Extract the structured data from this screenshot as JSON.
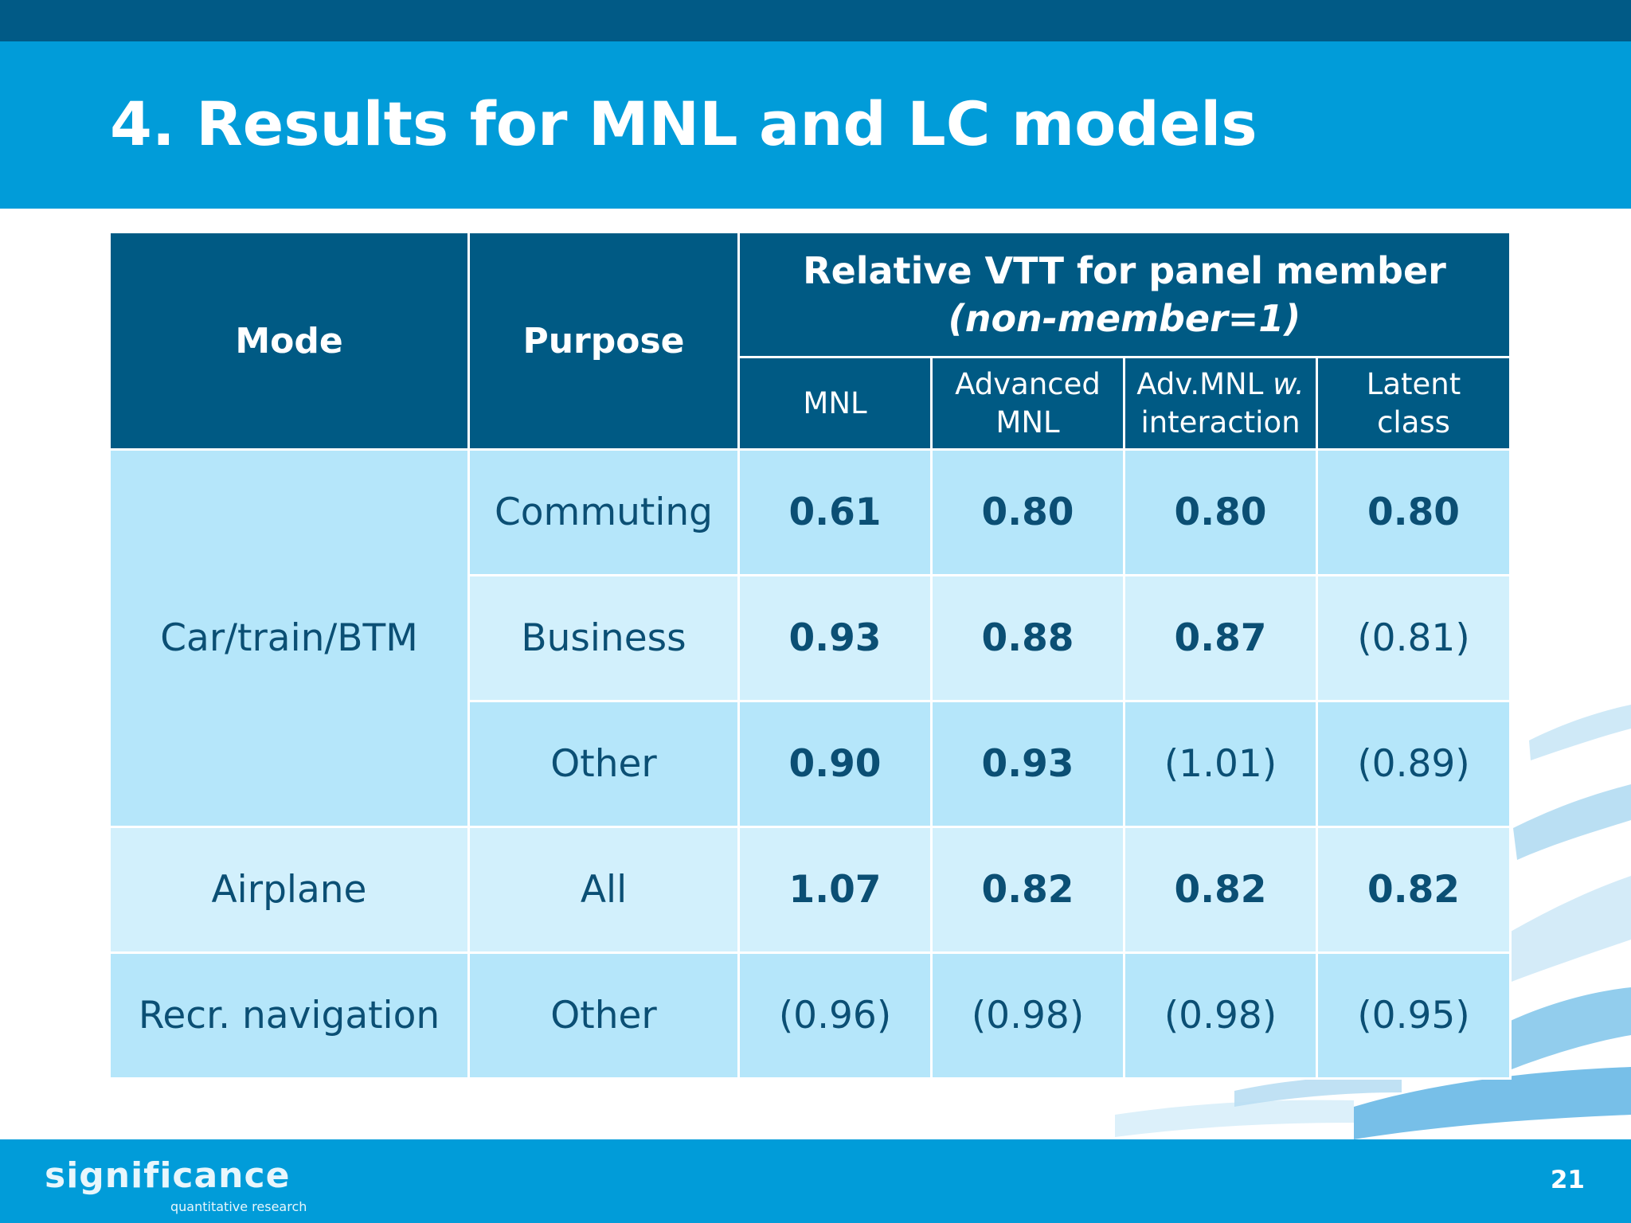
{
  "slide": {
    "title": "4. Results for MNL and LC models",
    "page_number": "21"
  },
  "logo": {
    "name": "significance",
    "tagline": "quantitative research"
  },
  "table": {
    "headers": {
      "mode": "Mode",
      "purpose": "Purpose",
      "group_title": "Relative VTT for panel member",
      "group_subtitle": "(non-member=1)",
      "columns": [
        {
          "line1": "MNL",
          "line2": ""
        },
        {
          "line1": "Advanced",
          "line2": "MNL"
        },
        {
          "line1_plain": "Adv.MNL ",
          "line1_italic": "w.",
          "line2": "interaction"
        },
        {
          "line1": "Latent",
          "line2": "class"
        }
      ]
    },
    "rows": [
      {
        "mode": "Car/train/BTM",
        "purpose": "Commuting",
        "values": [
          "0.61",
          "0.80",
          "0.80",
          "0.80"
        ]
      },
      {
        "mode": "",
        "purpose": "Business",
        "values": [
          "0.93",
          "0.88",
          "0.87",
          "(0.81)"
        ]
      },
      {
        "mode": "",
        "purpose": "Other",
        "values": [
          "0.90",
          "0.93",
          "(1.01)",
          "(0.89)"
        ]
      },
      {
        "mode": "Airplane",
        "purpose": "All",
        "values": [
          "1.07",
          "0.82",
          "0.82",
          "0.82"
        ]
      },
      {
        "mode": "Recr. navigation",
        "purpose": "Other",
        "values": [
          "(0.96)",
          "(0.98)",
          "(0.98)",
          "(0.95)"
        ]
      }
    ]
  },
  "colors": {
    "header_dark": "#005a84",
    "top_bar": "#015a86",
    "title_bar": "#019cd9",
    "cell_light_a": "#b5e6fa",
    "cell_light_b": "#d2f0fc",
    "cell_text": "#0b4f74"
  }
}
